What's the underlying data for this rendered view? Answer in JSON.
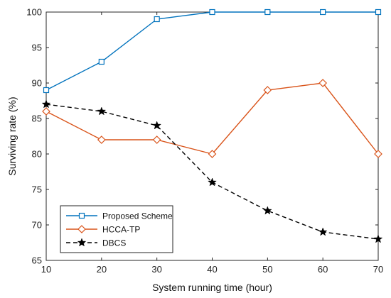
{
  "chart_data": {
    "type": "line",
    "title": "",
    "xlabel": "System running time (hour)",
    "ylabel": "Surviving rate (%)",
    "x": [
      10,
      20,
      30,
      40,
      50,
      60,
      70
    ],
    "xlim": [
      10,
      70
    ],
    "ylim": [
      65,
      100
    ],
    "xticks": [
      10,
      20,
      30,
      40,
      50,
      60,
      70
    ],
    "yticks": [
      65,
      70,
      75,
      80,
      85,
      90,
      95,
      100
    ],
    "grid": false,
    "legend_position": "bottom-left",
    "series": [
      {
        "name": "Proposed Scheme",
        "values": [
          89,
          93,
          99,
          100,
          100,
          100,
          100
        ],
        "color": "#0072BD",
        "marker": "square",
        "line": "solid"
      },
      {
        "name": "HCCA-TP",
        "values": [
          86,
          82,
          82,
          80,
          89,
          90,
          80
        ],
        "color": "#D95319",
        "marker": "diamond",
        "line": "solid"
      },
      {
        "name": "DBCS",
        "values": [
          87,
          86,
          84,
          76,
          72,
          69,
          68
        ],
        "color": "#000000",
        "marker": "star",
        "line": "dashed"
      }
    ]
  }
}
